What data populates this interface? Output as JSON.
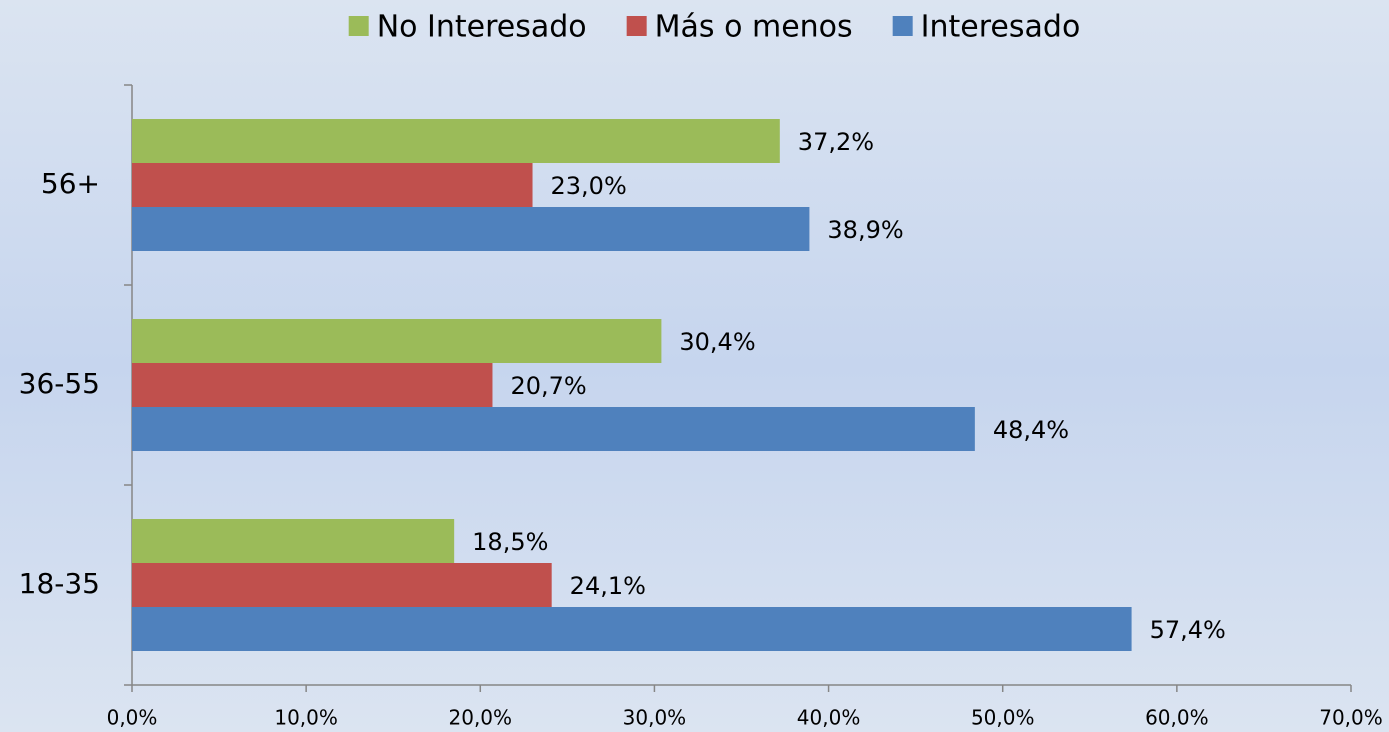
{
  "chart_data": {
    "type": "hbar",
    "categories": [
      "18-35",
      "36-55",
      "56+"
    ],
    "series": [
      {
        "name": "No Interesado",
        "color": "#9bbb59",
        "values": [
          18.5,
          30.4,
          37.2
        ],
        "value_labels": [
          "18,5%",
          "30,4%",
          "37,2%"
        ]
      },
      {
        "name": "Más o menos",
        "color": "#c0504d",
        "values": [
          24.1,
          20.7,
          23.0
        ],
        "value_labels": [
          "24,1%",
          "20,7%",
          "23,0%"
        ]
      },
      {
        "name": "Interesado",
        "color": "#4f81bd",
        "values": [
          57.4,
          48.4,
          38.9
        ],
        "value_labels": [
          "57,4%",
          "48,4%",
          "38,9%"
        ]
      }
    ],
    "xlim": [
      0,
      70
    ],
    "xticks": [
      {
        "value": 0,
        "label": "0,0%"
      },
      {
        "value": 10,
        "label": "10,0%"
      },
      {
        "value": 20,
        "label": "20,0%"
      },
      {
        "value": 30,
        "label": "30,0%"
      },
      {
        "value": 40,
        "label": "40,0%"
      },
      {
        "value": 50,
        "label": "50,0%"
      },
      {
        "value": 60,
        "label": "60,0%"
      },
      {
        "value": 70,
        "label": "70,0%"
      }
    ],
    "legend": "top"
  }
}
